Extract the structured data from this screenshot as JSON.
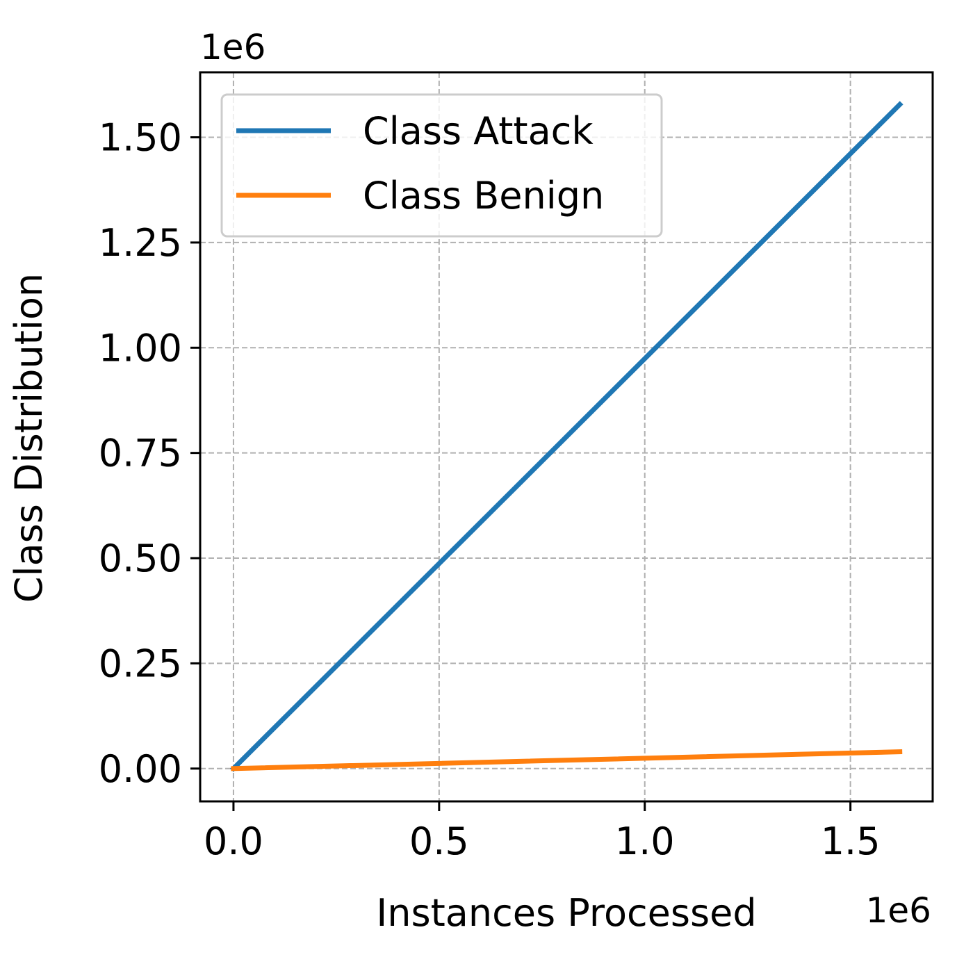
{
  "chart_data": {
    "type": "line",
    "xlabel": "Instances Processed",
    "ylabel": "Class Distribution",
    "x_offset_label": "1e6",
    "y_offset_label": "1e6",
    "xlim": [
      -0.081,
      1.7
    ],
    "ylim": [
      -0.078,
      1.6545
    ],
    "x_ticks": [
      0.0,
      0.5,
      1.0,
      1.5
    ],
    "x_tick_labels": [
      "0.0",
      "0.5",
      "1.0",
      "1.5"
    ],
    "y_ticks": [
      0.0,
      0.25,
      0.5,
      0.75,
      1.0,
      1.25,
      1.5
    ],
    "y_tick_labels": [
      "0.00",
      "0.25",
      "0.50",
      "0.75",
      "1.00",
      "1.25",
      "1.50"
    ],
    "grid": true,
    "legend_position": "upper-left",
    "series": [
      {
        "name": "Class Attack",
        "color": "#1f77b4",
        "x": [
          0.0,
          1.62
        ],
        "y": [
          0.0,
          1.578
        ]
      },
      {
        "name": "Class Benign",
        "color": "#ff7f0e",
        "x": [
          0.0,
          1.62
        ],
        "y": [
          0.0,
          0.04
        ]
      }
    ]
  }
}
